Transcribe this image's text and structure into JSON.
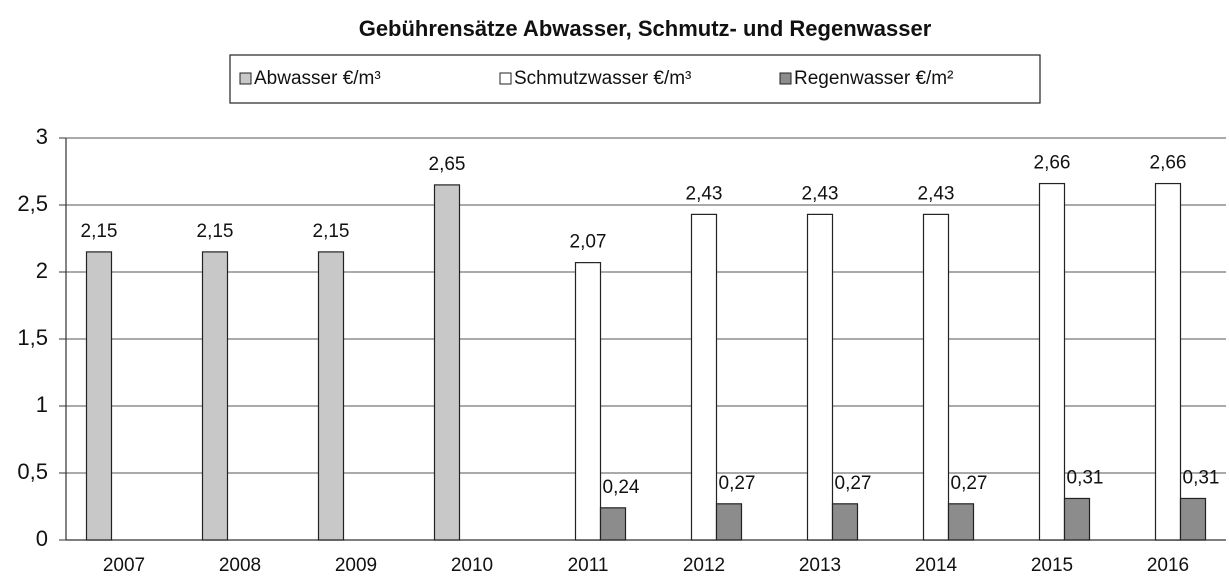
{
  "chart_data": {
    "type": "bar",
    "title": "Gebührensätze Abwasser, Schmutz- und Regenwasser",
    "categories": [
      "2007",
      "2008",
      "2009",
      "2010",
      "2011",
      "2012",
      "2013",
      "2014",
      "2015",
      "2016"
    ],
    "series": [
      {
        "name": "Abwasser €/m³",
        "color": "#c8c8c8",
        "values": [
          2.15,
          2.15,
          2.15,
          2.65,
          null,
          null,
          null,
          null,
          null,
          null
        ],
        "value_labels": [
          "2,15",
          "2,15",
          "2,15",
          "2,65",
          null,
          null,
          null,
          null,
          null,
          null
        ]
      },
      {
        "name": "Schmutzwasser €/m³",
        "color": "#ffffff",
        "values": [
          null,
          null,
          null,
          null,
          2.07,
          2.43,
          2.43,
          2.43,
          2.66,
          2.66
        ],
        "value_labels": [
          null,
          null,
          null,
          null,
          "2,07",
          "2,43",
          "2,43",
          "2,43",
          "2,66",
          "2,66"
        ]
      },
      {
        "name": "Regenwasser €/m²",
        "color": "#8c8c8c",
        "values": [
          null,
          null,
          null,
          null,
          0.24,
          0.27,
          0.27,
          0.27,
          0.31,
          0.31
        ],
        "value_labels": [
          null,
          null,
          null,
          null,
          "0,24",
          "0,27",
          "0,27",
          "0,27",
          "0,31",
          "0,31"
        ]
      }
    ],
    "ylim": [
      0,
      3
    ],
    "yticks": [
      0,
      {
        "value": 0.5,
        "label": "0,5"
      },
      1,
      {
        "value": 1.5,
        "label": "1,5"
      },
      2,
      {
        "value": 2.5,
        "label": "2,5"
      },
      3
    ],
    "grid": true,
    "legend": "top"
  }
}
